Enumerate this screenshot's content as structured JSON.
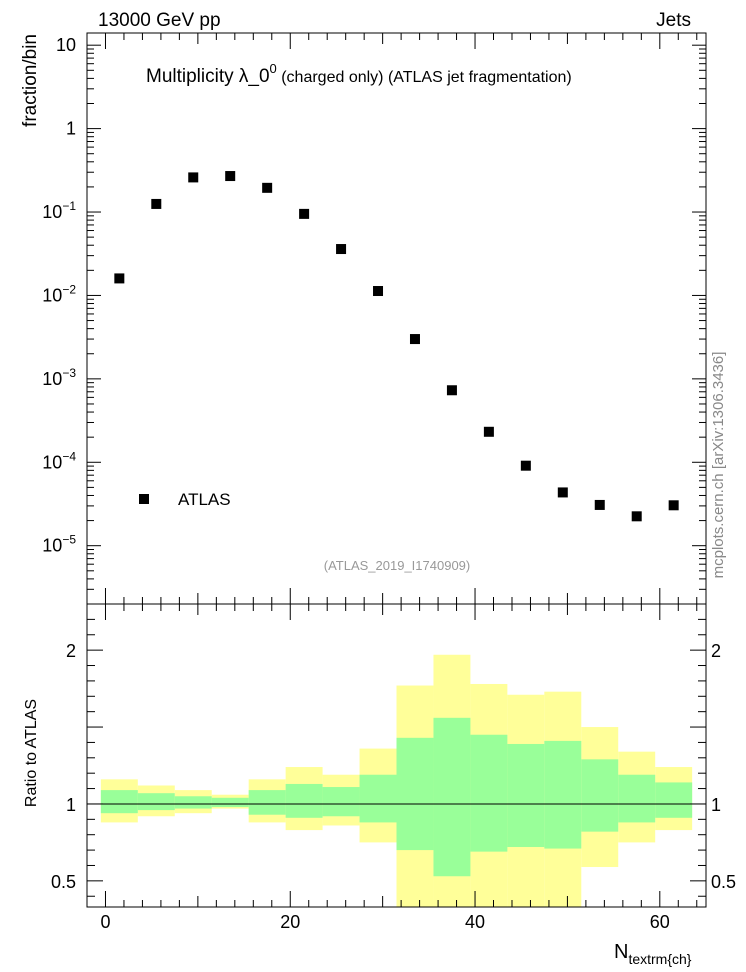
{
  "header": {
    "left": "13000 GeV pp",
    "right": "Jets"
  },
  "title": {
    "main": "Multiplicity  λ_0",
    "superscript": "0",
    "suffix": " (charged only) (ATLAS jet fragmentation)"
  },
  "side_label": "mcplots.cern.ch [arXiv:1306.3436]",
  "watermark": "(ATLAS_2019_I1740909)",
  "chart_data": [
    {
      "type": "scatter",
      "title": "Multiplicity  λ_0^0 (charged only) (ATLAS jet fragmentation)",
      "ylabel": "fraction/bin",
      "yscale": "log",
      "xlim": [
        -2,
        65
      ],
      "ylim": [
        2e-06,
        14
      ],
      "y_ticks": [
        {
          "value": 10,
          "label": "10"
        },
        {
          "value": 1,
          "label": "1"
        },
        {
          "value": 0.1,
          "base": "10",
          "exp": "−1"
        },
        {
          "value": 0.01,
          "base": "10",
          "exp": "−2"
        },
        {
          "value": 0.001,
          "base": "10",
          "exp": "−3"
        },
        {
          "value": 0.0001,
          "base": "10",
          "exp": "−4"
        },
        {
          "value": 1e-05,
          "base": "10",
          "exp": "−5"
        }
      ],
      "legend": {
        "entries": [
          "ATLAS"
        ],
        "position": "bottom-left"
      },
      "series": [
        {
          "name": "ATLAS",
          "x": [
            1.5,
            5.5,
            9.5,
            13.5,
            17.5,
            21.5,
            25.5,
            29.5,
            33.5,
            37.5,
            41.5,
            45.5,
            49.5,
            53.5,
            57.5,
            61.5
          ],
          "y": [
            0.016,
            0.125,
            0.26,
            0.27,
            0.195,
            0.095,
            0.036,
            0.0113,
            0.003,
            0.00073,
            0.000232,
            9.1e-05,
            4.35e-05,
            3.08e-05,
            2.25e-05,
            3.05e-05
          ]
        }
      ]
    },
    {
      "type": "area",
      "ylabel": "Ratio to ATLAS",
      "xlabel": "N",
      "xlabel_sub": "textrm{ch}",
      "xlim": [
        -2,
        65
      ],
      "ylim": [
        0.33,
        2.3
      ],
      "x_ticks": [
        0,
        20,
        40,
        60
      ],
      "y_ticks": [
        {
          "value": 0.5,
          "label": "0.5"
        },
        {
          "value": 1,
          "label": "1"
        },
        {
          "value": 2,
          "label": "2"
        }
      ],
      "bin_edges": [
        -0.5,
        3.5,
        7.5,
        11.5,
        15.5,
        19.5,
        23.5,
        27.5,
        31.5,
        35.5,
        39.5,
        43.5,
        47.5,
        51.5,
        55.5,
        59.5,
        63.5
      ],
      "reference_line": 1,
      "bands": [
        {
          "name": "total uncertainty",
          "color": "#ffff99",
          "low": [
            0.88,
            0.92,
            0.94,
            0.97,
            0.88,
            0.83,
            0.86,
            0.75,
            0.33,
            0.33,
            0.33,
            0.33,
            0.33,
            0.59,
            0.75,
            0.83
          ],
          "high": [
            1.16,
            1.12,
            1.09,
            1.06,
            1.16,
            1.24,
            1.19,
            1.36,
            1.77,
            1.97,
            1.78,
            1.71,
            1.73,
            1.5,
            1.34,
            1.24
          ]
        },
        {
          "name": "stat uncertainty",
          "color": "#99ff99",
          "low": [
            0.94,
            0.96,
            0.97,
            0.98,
            0.93,
            0.91,
            0.92,
            0.88,
            0.7,
            0.53,
            0.69,
            0.72,
            0.71,
            0.82,
            0.88,
            0.91
          ],
          "high": [
            1.09,
            1.07,
            1.05,
            1.04,
            1.09,
            1.13,
            1.11,
            1.19,
            1.43,
            1.56,
            1.45,
            1.39,
            1.41,
            1.29,
            1.19,
            1.14
          ]
        }
      ]
    }
  ]
}
